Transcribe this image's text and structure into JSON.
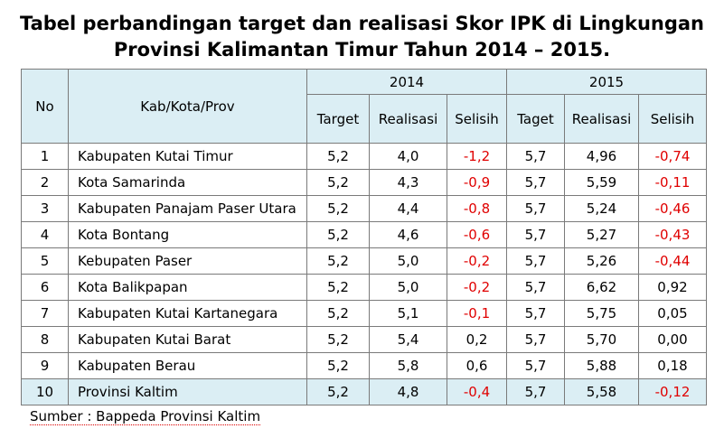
{
  "title_line1": "Tabel perbandingan target dan realisasi Skor IPK di Lingkungan",
  "title_line2": "Provinsi Kalimantan Timur Tahun 2014 – 2015.",
  "headers": {
    "no": "No",
    "region": "Kab/Kota/Prov",
    "year1": "2014",
    "year2": "2015",
    "target1": "Target",
    "realisasi1": "Realisasi",
    "selisih1": "Selisih",
    "target2": "Taget",
    "realisasi2": "Realisasi",
    "selisih2": "Selisih"
  },
  "rows": [
    {
      "no": "1",
      "name": "Kabupaten Kutai Timur",
      "t14": "5,2",
      "r14": "4,0",
      "s14": "-1,2",
      "t15": "5,7",
      "r15": "4,96",
      "s15": "-0,74"
    },
    {
      "no": "2",
      "name": "Kota Samarinda",
      "t14": "5,2",
      "r14": "4,3",
      "s14": "-0,9",
      "t15": "5,7",
      "r15": "5,59",
      "s15": "-0,11"
    },
    {
      "no": "3",
      "name": "Kabupaten Panajam Paser Utara",
      "t14": "5,2",
      "r14": "4,4",
      "s14": "-0,8",
      "t15": "5,7",
      "r15": "5,24",
      "s15": "-0,46"
    },
    {
      "no": "4",
      "name": "Kota Bontang",
      "t14": "5,2",
      "r14": "4,6",
      "s14": "-0,6",
      "t15": "5,7",
      "r15": "5,27",
      "s15": "-0,43"
    },
    {
      "no": "5",
      "name": "Kebupaten Paser",
      "t14": "5,2",
      "r14": "5,0",
      "s14": "-0,2",
      "t15": "5,7",
      "r15": "5,26",
      "s15": "-0,44"
    },
    {
      "no": "6",
      "name": "Kota Balikpapan",
      "t14": "5,2",
      "r14": "5,0",
      "s14": "-0,2",
      "t15": "5,7",
      "r15": "6,62",
      "s15": "0,92"
    },
    {
      "no": "7",
      "name": "Kabupaten Kutai Kartanegara",
      "t14": "5,2",
      "r14": "5,1",
      "s14": "-0,1",
      "t15": "5,7",
      "r15": "5,75",
      "s15": "0,05"
    },
    {
      "no": "8",
      "name": "Kabupaten Kutai Barat",
      "t14": "5,2",
      "r14": "5,4",
      "s14": "0,2",
      "t15": "5,7",
      "r15": "5,70",
      "s15": "0,00"
    },
    {
      "no": "9",
      "name": "Kabupaten Berau",
      "t14": "5,2",
      "r14": "5,8",
      "s14": "0,6",
      "t15": "5,7",
      "r15": "5,88",
      "s15": "0,18"
    },
    {
      "no": "10",
      "name": "Provinsi Kaltim",
      "t14": "5,2",
      "r14": "4,8",
      "s14": "-0,4",
      "t15": "5,7",
      "r15": "5,58",
      "s15": "-0,12"
    }
  ],
  "source": "Sumber : Bappeda Provinsi Kaltim",
  "colors": {
    "header_bg": "#dbeef4",
    "negative": "#e00000",
    "border": "#7a7a7a"
  }
}
